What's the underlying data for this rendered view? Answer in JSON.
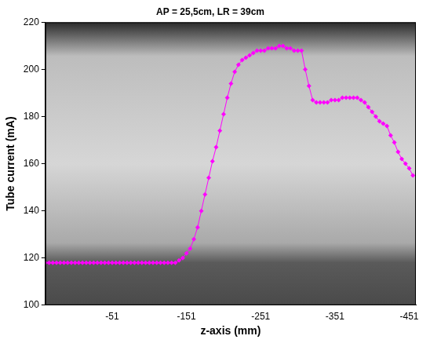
{
  "chart_data": {
    "type": "line",
    "title": "AP = 25,5cm, LR = 39cm",
    "x_label": "z-axis (mm)",
    "y_label": "Tube current (mA)",
    "x": [
      39,
      34,
      29,
      24,
      19,
      14,
      9,
      4,
      -1,
      -6,
      -11,
      -16,
      -21,
      -26,
      -31,
      -36,
      -41,
      -46,
      -51,
      -56,
      -61,
      -66,
      -71,
      -76,
      -81,
      -86,
      -91,
      -96,
      -101,
      -106,
      -111,
      -116,
      -121,
      -126,
      -131,
      -136,
      -141,
      -146,
      -151,
      -156,
      -161,
      -166,
      -171,
      -176,
      -181,
      -186,
      -191,
      -196,
      -201,
      -206,
      -211,
      -216,
      -221,
      -226,
      -231,
      -236,
      -241,
      -246,
      -251,
      -256,
      -261,
      -266,
      -271,
      -276,
      -281,
      -286,
      -291,
      -296,
      -301,
      -306,
      -311,
      -316,
      -321,
      -326,
      -331,
      -336,
      -341,
      -346,
      -351,
      -356,
      -361,
      -366,
      -371,
      -376,
      -381,
      -386,
      -391,
      -396,
      -401,
      -406,
      -411,
      -416,
      -421,
      -426,
      -431,
      -436,
      -441,
      -446,
      -451,
      -456
    ],
    "values": [
      118,
      118,
      118,
      118,
      118,
      118,
      118,
      118,
      118,
      118,
      118,
      118,
      118,
      118,
      118,
      118,
      118,
      118,
      118,
      118,
      118,
      118,
      118,
      118,
      118,
      118,
      118,
      118,
      118,
      118,
      118,
      118,
      118,
      118,
      118,
      118,
      119,
      120,
      122,
      124,
      128,
      133,
      140,
      147,
      154,
      161,
      167,
      174,
      181,
      188,
      194,
      199,
      202,
      204,
      205,
      206,
      207,
      208,
      208,
      208,
      209,
      209,
      209,
      210,
      210,
      209,
      209,
      208,
      208,
      208,
      200,
      193,
      187,
      186,
      186,
      186,
      186,
      187,
      187,
      187,
      188,
      188,
      188,
      188,
      188,
      187,
      186,
      184,
      182,
      180,
      178,
      177,
      176,
      172,
      169,
      165,
      162,
      160,
      158,
      155
    ],
    "color": "#ff00ff",
    "marker": "diamond",
    "line_style": "solid",
    "xlim": [
      39,
      -460
    ],
    "xticks": [
      -51,
      -151,
      -251,
      -351,
      -451
    ],
    "ylim": [
      100,
      220
    ],
    "yticks": [
      100,
      120,
      140,
      160,
      180,
      200,
      220
    ],
    "grid": false
  }
}
